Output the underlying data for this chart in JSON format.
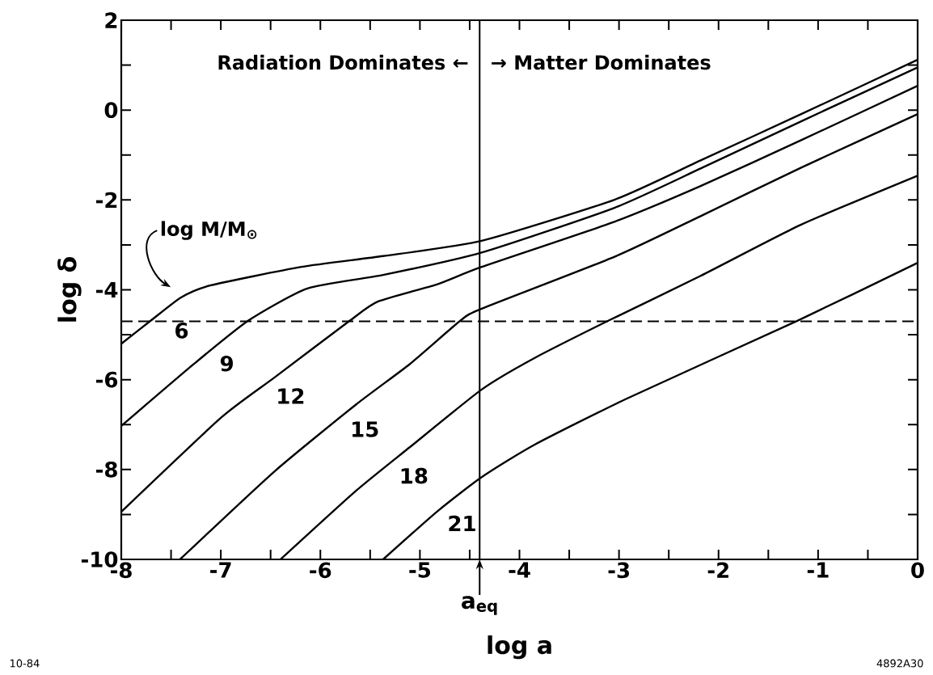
{
  "chart_data": {
    "type": "line",
    "xlabel": "log a",
    "ylabel": "log δ",
    "xlim": [
      -8,
      0
    ],
    "ylim": [
      -10,
      2
    ],
    "xticks": [
      -8,
      {
        "value": -7.5,
        "label": null
      },
      -7,
      {
        "value": -6.5,
        "label": null
      },
      -6,
      {
        "value": -5.5,
        "label": null
      },
      -5,
      {
        "value": -4.5,
        "label": null
      },
      -4,
      {
        "value": -3.5,
        "label": null
      },
      -3,
      {
        "value": -2.5,
        "label": null
      },
      -2,
      {
        "value": -1.5,
        "label": null
      },
      -1,
      {
        "value": -0.5,
        "label": null
      },
      0
    ],
    "yticks": [
      -10,
      {
        "value": -9,
        "label": null
      },
      -8,
      {
        "value": -7,
        "label": null
      },
      -6,
      {
        "value": -5,
        "label": null
      },
      -4,
      {
        "value": -3,
        "label": null
      },
      -2,
      {
        "value": -1,
        "label": null
      },
      0,
      {
        "value": 1,
        "label": null
      },
      2
    ],
    "color": "#000000",
    "marker": "none",
    "line_style": "solid",
    "grid": false,
    "legend": "left",
    "series": [
      {
        "name": "6",
        "x": [
          -8,
          -7.7,
          -7.4,
          -7.1,
          -6.19,
          -5.37,
          -4.38,
          -3.04,
          -2.18,
          -1.17,
          0
        ],
        "values": [
          -5.2,
          -4.68,
          -4.17,
          -3.9,
          -3.49,
          -3.25,
          -2.91,
          -1.99,
          -1.12,
          -0.09,
          1.12
        ]
      },
      {
        "name": "9",
        "x": [
          -8,
          -7.27,
          -6.72,
          -6.13,
          -5.37,
          -4.38,
          -3.04,
          -2.18,
          -1.17,
          0
        ],
        "values": [
          -7.03,
          -5.65,
          -4.68,
          -3.97,
          -3.67,
          -3.17,
          -2.17,
          -1.3,
          -0.25,
          0.95
        ]
      },
      {
        "name": "12",
        "x": [
          -8,
          -7.0,
          -6.46,
          -5.7,
          -5.42,
          -4.83,
          -4.38,
          -3.04,
          -2.18,
          -1.17,
          0
        ],
        "values": [
          -8.94,
          -6.85,
          -5.95,
          -4.68,
          -4.26,
          -3.88,
          -3.49,
          -2.48,
          -1.69,
          -0.67,
          0.54
        ]
      },
      {
        "name": "15",
        "x": [
          -7.41,
          -6.46,
          -5.64,
          -5.1,
          -4.59,
          -4.38,
          -3.04,
          -2.18,
          -1.17,
          0
        ],
        "values": [
          -10,
          -8.04,
          -6.55,
          -5.65,
          -4.68,
          -4.42,
          -3.26,
          -2.36,
          -1.28,
          -0.09
        ]
      },
      {
        "name": "18",
        "x": [
          -6.4,
          -5.64,
          -5.1,
          -4.38,
          -3.85,
          -3.1,
          -2.18,
          -1.17,
          0
        ],
        "values": [
          -10,
          -8.47,
          -7.5,
          -6.22,
          -5.52,
          -4.68,
          -3.69,
          -2.55,
          -1.46
        ]
      },
      {
        "name": "21",
        "x": [
          -5.37,
          -4.83,
          -4.38,
          -3.85,
          -2.92,
          -1.2,
          0
        ],
        "values": [
          -10,
          -8.94,
          -8.17,
          -7.45,
          -6.42,
          -4.68,
          -3.4
        ]
      }
    ],
    "ref_lines": [
      {
        "axis": "x",
        "value": -4.4,
        "label": "a$_{eq}$",
        "line_style": "solid"
      },
      {
        "axis": "y",
        "value": -4.7,
        "line_style": "dashed"
      }
    ],
    "annotations": [
      "Radiation Dominates ←",
      "→ Matter Dominates",
      "log M/M$_{⊙}$",
      "10-84",
      "4892A30"
    ]
  }
}
